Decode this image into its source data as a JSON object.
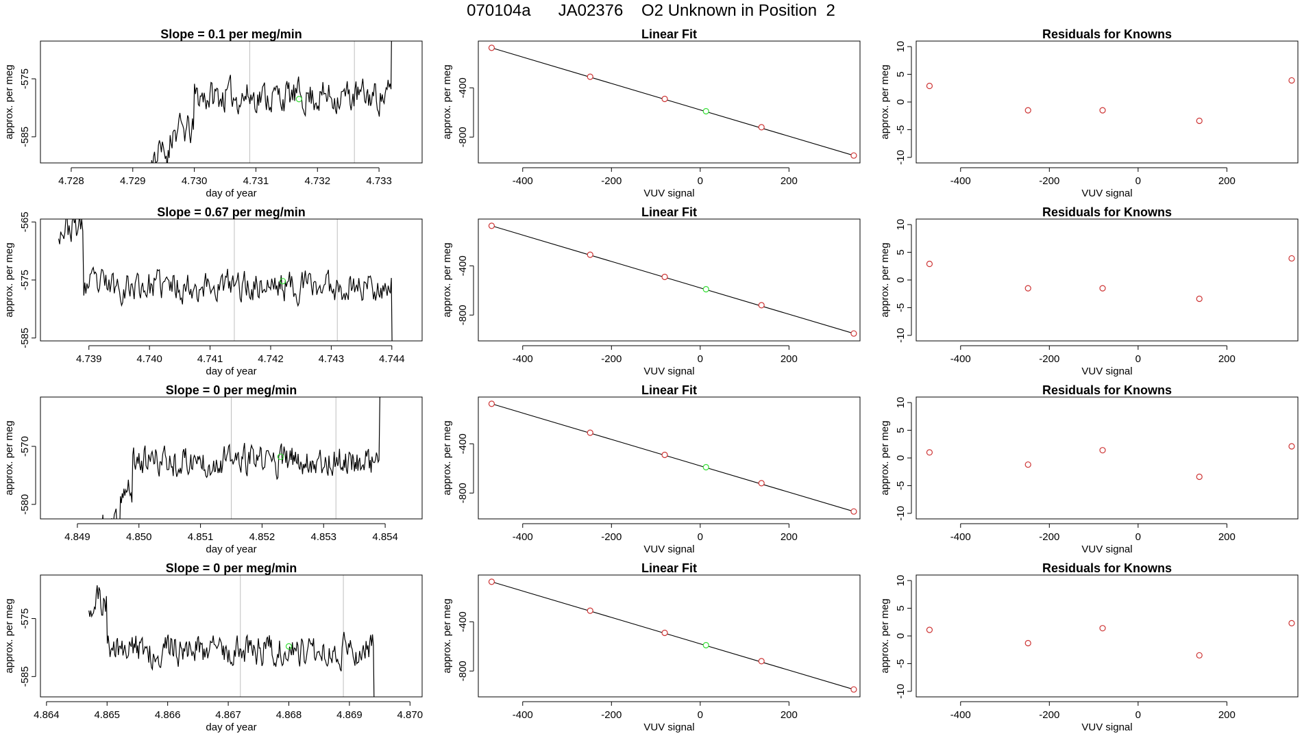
{
  "main_title": "070104a      JA02376    O2 Unknown in Position  2",
  "chart_data": [
    {
      "type": "line",
      "panel": "slope-row-1",
      "title": "Slope =  0.1  per meg/min",
      "xlabel": "day of year",
      "ylabel": "approx. per meg",
      "xlim": [
        4.7275,
        4.7337
      ],
      "ylim": [
        -589.5,
        -568.5
      ],
      "xticks": [
        "4.728",
        "4.729",
        "4.730",
        "4.731",
        "4.732",
        "4.733"
      ],
      "yticks": [
        "-575",
        "-585"
      ],
      "vlines": [
        4.7309,
        4.7326
      ],
      "green_point": [
        4.7317,
        -578.5
      ],
      "trace": {
        "seed": 11,
        "n": 330,
        "center": -578.6,
        "noise": 2.4,
        "segments": [
          [
            4.7282,
            4.7293,
            -600
          ],
          [
            4.7293,
            4.7296,
            -588
          ],
          [
            4.7296,
            4.73,
            -584
          ],
          [
            4.73,
            4.7332,
            -578
          ],
          [
            4.7332,
            4.7334,
            -560
          ]
        ]
      }
    },
    {
      "type": "line",
      "panel": "slope-row-2",
      "title": "Slope =  0.67  per meg/min",
      "xlabel": "day of year",
      "ylabel": "approx. per meg",
      "xlim": [
        4.7382,
        4.7445
      ],
      "ylim": [
        -585.5,
        -564.5
      ],
      "xticks": [
        "4.739",
        "4.740",
        "4.741",
        "4.742",
        "4.743",
        "4.744"
      ],
      "yticks": [
        "-565",
        "-575",
        "-585"
      ],
      "vlines": [
        4.7414,
        4.7431
      ],
      "green_point": [
        4.7422,
        -575.2
      ],
      "trace": {
        "seed": 23,
        "n": 330,
        "center": -576.0,
        "noise": 2.3,
        "segments": [
          [
            4.7385,
            4.7389,
            -566
          ],
          [
            4.7389,
            4.744,
            -576
          ],
          [
            4.744,
            4.7442,
            -590
          ]
        ]
      }
    },
    {
      "type": "line",
      "panel": "slope-row-3",
      "title": "Slope =  0  per meg/min",
      "xlabel": "day of year",
      "ylabel": "approx. per meg",
      "xlim": [
        4.8484,
        4.8546
      ],
      "ylim": [
        -582.5,
        -561.5
      ],
      "xticks": [
        "4.849",
        "4.850",
        "4.851",
        "4.852",
        "4.853",
        "4.854"
      ],
      "yticks": [
        "-570",
        "-580"
      ],
      "vlines": [
        4.8515,
        4.8532
      ],
      "green_point": [
        4.8523,
        -571.8
      ],
      "trace": {
        "seed": 37,
        "n": 330,
        "center": -572.8,
        "noise": 2.2,
        "segments": [
          [
            4.8494,
            4.8497,
            -584
          ],
          [
            4.8497,
            4.8499,
            -578
          ],
          [
            4.8499,
            4.8539,
            -572.5
          ],
          [
            4.8539,
            4.8541,
            -560
          ]
        ]
      }
    },
    {
      "type": "line",
      "panel": "slope-row-4",
      "title": "Slope =  0  per meg/min",
      "xlabel": "day of year",
      "ylabel": "approx. per meg",
      "xlim": [
        4.8639,
        4.8702
      ],
      "ylim": [
        -588.5,
        -567.5
      ],
      "xticks": [
        "4.864",
        "4.865",
        "4.866",
        "4.867",
        "4.868",
        "4.869",
        "4.870"
      ],
      "yticks": [
        "-575",
        "-585"
      ],
      "vlines": [
        4.8672,
        4.8689
      ],
      "green_point": [
        4.868,
        -579.8
      ],
      "trace": {
        "seed": 51,
        "n": 330,
        "center": -580.0,
        "noise": 2.3,
        "segments": [
          [
            4.8647,
            4.865,
            -572
          ],
          [
            4.865,
            4.8694,
            -580.3
          ],
          [
            4.8694,
            4.8697,
            -592
          ]
        ]
      }
    },
    {
      "type": "scatter",
      "panel": "fit-row-1",
      "title": "Linear Fit",
      "xlabel": "VUV signal",
      "ylabel": "approx. per meg",
      "xlim": [
        -500,
        360
      ],
      "ylim": [
        -1010,
        -20
      ],
      "xticks": [
        "-400",
        "-200",
        "0",
        "200"
      ],
      "yticks": [
        "-400",
        "-800"
      ],
      "known_points": [
        [
          -470,
          -75
        ],
        [
          -248,
          -310
        ],
        [
          -80,
          -490
        ],
        [
          138,
          -720
        ],
        [
          346,
          -950
        ]
      ],
      "unknown_point": [
        13,
        -590
      ],
      "fit_line": [
        [
          -470,
          -75
        ],
        [
          346,
          -950
        ]
      ]
    },
    {
      "type": "scatter",
      "panel": "fit-row-2",
      "title": "Linear Fit",
      "xlabel": "VUV signal",
      "ylabel": "approx. per meg",
      "xlim": [
        -500,
        360
      ],
      "ylim": [
        -1010,
        -20
      ],
      "xticks": [
        "-400",
        "-200",
        "0",
        "200"
      ],
      "yticks": [
        "-400",
        "-800"
      ],
      "known_points": [
        [
          -470,
          -75
        ],
        [
          -248,
          -310
        ],
        [
          -80,
          -490
        ],
        [
          138,
          -720
        ],
        [
          346,
          -950
        ]
      ],
      "unknown_point": [
        13,
        -590
      ],
      "fit_line": [
        [
          -470,
          -75
        ],
        [
          346,
          -950
        ]
      ]
    },
    {
      "type": "scatter",
      "panel": "fit-row-3",
      "title": "Linear Fit",
      "xlabel": "VUV signal",
      "ylabel": "approx. per meg",
      "xlim": [
        -500,
        360
      ],
      "ylim": [
        -1010,
        -20
      ],
      "xticks": [
        "-400",
        "-200",
        "0",
        "200"
      ],
      "yticks": [
        "-400",
        "-800"
      ],
      "known_points": [
        [
          -470,
          -75
        ],
        [
          -248,
          -310
        ],
        [
          -80,
          -490
        ],
        [
          138,
          -720
        ],
        [
          346,
          -950
        ]
      ],
      "unknown_point": [
        13,
        -590
      ],
      "fit_line": [
        [
          -470,
          -75
        ],
        [
          346,
          -950
        ]
      ]
    },
    {
      "type": "scatter",
      "panel": "fit-row-4",
      "title": "Linear Fit",
      "xlabel": "VUV signal",
      "ylabel": "approx. per meg",
      "xlim": [
        -500,
        360
      ],
      "ylim": [
        -1010,
        -20
      ],
      "xticks": [
        "-400",
        "-200",
        "0",
        "200"
      ],
      "yticks": [
        "-400",
        "-800"
      ],
      "known_points": [
        [
          -470,
          -75
        ],
        [
          -248,
          -310
        ],
        [
          -80,
          -490
        ],
        [
          138,
          -720
        ],
        [
          346,
          -950
        ]
      ],
      "unknown_point": [
        13,
        -590
      ],
      "fit_line": [
        [
          -470,
          -75
        ],
        [
          346,
          -950
        ]
      ]
    },
    {
      "type": "scatter",
      "panel": "residuals-row-1",
      "title": "Residuals for Knowns",
      "xlabel": "VUV signal",
      "ylabel": "approx. per meg",
      "xlim": [
        -500,
        360
      ],
      "ylim": [
        -11,
        11
      ],
      "xticks": [
        "-400",
        "-200",
        "0",
        "200"
      ],
      "yticks": [
        "10",
        "5",
        "0",
        "-5",
        "-10"
      ],
      "points": [
        [
          -470,
          2.9
        ],
        [
          -248,
          -1.5
        ],
        [
          -80,
          -1.5
        ],
        [
          138,
          -3.4
        ],
        [
          346,
          3.9
        ]
      ]
    },
    {
      "type": "scatter",
      "panel": "residuals-row-2",
      "title": "Residuals for Knowns",
      "xlabel": "VUV signal",
      "ylabel": "approx. per meg",
      "xlim": [
        -500,
        360
      ],
      "ylim": [
        -11,
        11
      ],
      "xticks": [
        "-400",
        "-200",
        "0",
        "200"
      ],
      "yticks": [
        "10",
        "5",
        "0",
        "-5",
        "-10"
      ],
      "points": [
        [
          -470,
          2.9
        ],
        [
          -248,
          -1.5
        ],
        [
          -80,
          -1.5
        ],
        [
          138,
          -3.4
        ],
        [
          346,
          3.9
        ]
      ]
    },
    {
      "type": "scatter",
      "panel": "residuals-row-3",
      "title": "Residuals for Knowns",
      "xlabel": "VUV signal",
      "ylabel": "approx. per meg",
      "xlim": [
        -500,
        360
      ],
      "ylim": [
        -11,
        11
      ],
      "xticks": [
        "-400",
        "-200",
        "0",
        "200"
      ],
      "yticks": [
        "10",
        "5",
        "0",
        "-5",
        "-10"
      ],
      "points": [
        [
          -470,
          1.0
        ],
        [
          -248,
          -1.2
        ],
        [
          -80,
          1.4
        ],
        [
          138,
          -3.4
        ],
        [
          346,
          2.1
        ]
      ]
    },
    {
      "type": "scatter",
      "panel": "residuals-row-4",
      "title": "Residuals for Knowns",
      "xlabel": "VUV signal",
      "ylabel": "approx. per meg",
      "xlim": [
        -500,
        360
      ],
      "ylim": [
        -11,
        11
      ],
      "xticks": [
        "-400",
        "-200",
        "0",
        "200"
      ],
      "yticks": [
        "10",
        "5",
        "0",
        "-5",
        "-10"
      ],
      "points": [
        [
          -470,
          1.1
        ],
        [
          -248,
          -1.3
        ],
        [
          -80,
          1.4
        ],
        [
          138,
          -3.5
        ],
        [
          346,
          2.3
        ]
      ]
    }
  ],
  "colors": {
    "axis": "#000000",
    "trace": "#000000",
    "vline": "#bebebe",
    "known": "#cd3333",
    "unknown": "#33dd33"
  }
}
